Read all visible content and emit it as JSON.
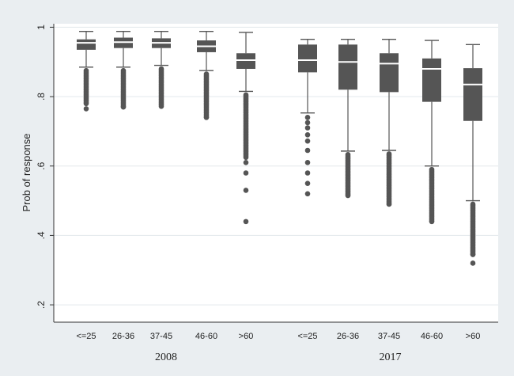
{
  "chart_data": {
    "type": "boxplot",
    "ylabel": "Prob of response",
    "ylim": [
      0.15,
      1.01
    ],
    "yticks": [
      {
        "value": 1.0,
        "label": "1"
      },
      {
        "value": 0.8,
        "label": ".8"
      },
      {
        "value": 0.6,
        "label": ".6"
      },
      {
        "value": 0.4,
        "label": ".4"
      },
      {
        "value": 0.2,
        "label": ".2"
      }
    ],
    "grid": true,
    "colors": {
      "box": "#555555",
      "median": "#ffffff",
      "plot_bg": "#ffffff",
      "outer_bg": "#eaeef1",
      "grid": "#e3e8ec"
    },
    "groups": [
      {
        "name": "2008",
        "boxes": [
          {
            "category": "<=25",
            "whisker_low": 0.885,
            "q1": 0.935,
            "median": 0.955,
            "q3": 0.965,
            "whisker_high": 0.988,
            "outliers": [
              0.78,
              0.765
            ]
          },
          {
            "category": "26-36",
            "whisker_low": 0.885,
            "q1": 0.94,
            "median": 0.957,
            "q3": 0.97,
            "whisker_high": 0.988,
            "outliers": [
              0.77
            ]
          },
          {
            "category": "37-45",
            "whisker_low": 0.89,
            "q1": 0.94,
            "median": 0.955,
            "q3": 0.968,
            "whisker_high": 0.988,
            "outliers": [
              0.772
            ]
          },
          {
            "category": "46-60",
            "whisker_low": 0.875,
            "q1": 0.928,
            "median": 0.945,
            "q3": 0.962,
            "whisker_high": 0.988,
            "outliers": [
              0.74
            ]
          },
          {
            "category": ">60",
            "whisker_low": 0.815,
            "q1": 0.88,
            "median": 0.905,
            "q3": 0.925,
            "whisker_high": 0.985,
            "outliers": [
              0.625,
              0.61,
              0.58,
              0.53,
              0.44
            ]
          }
        ]
      },
      {
        "name": "2017",
        "boxes": [
          {
            "category": "<=25",
            "whisker_low": 0.753,
            "q1": 0.87,
            "median": 0.905,
            "q3": 0.95,
            "whisker_high": 0.965,
            "outliers": [
              0.74,
              0.725,
              0.71,
              0.69,
              0.672,
              0.645,
              0.61,
              0.58,
              0.55,
              0.52
            ]
          },
          {
            "category": "26-36",
            "whisker_low": 0.643,
            "q1": 0.82,
            "median": 0.9,
            "q3": 0.95,
            "whisker_high": 0.965,
            "outliers": [
              0.515
            ]
          },
          {
            "category": "37-45",
            "whisker_low": 0.645,
            "q1": 0.813,
            "median": 0.895,
            "q3": 0.925,
            "whisker_high": 0.965,
            "outliers": [
              0.49
            ]
          },
          {
            "category": "46-60",
            "whisker_low": 0.6,
            "q1": 0.785,
            "median": 0.88,
            "q3": 0.91,
            "whisker_high": 0.962,
            "outliers": [
              0.44
            ]
          },
          {
            "category": ">60",
            "whisker_low": 0.5,
            "q1": 0.73,
            "median": 0.835,
            "q3": 0.882,
            "whisker_high": 0.95,
            "outliers": [
              0.345,
              0.32
            ]
          }
        ]
      }
    ]
  }
}
